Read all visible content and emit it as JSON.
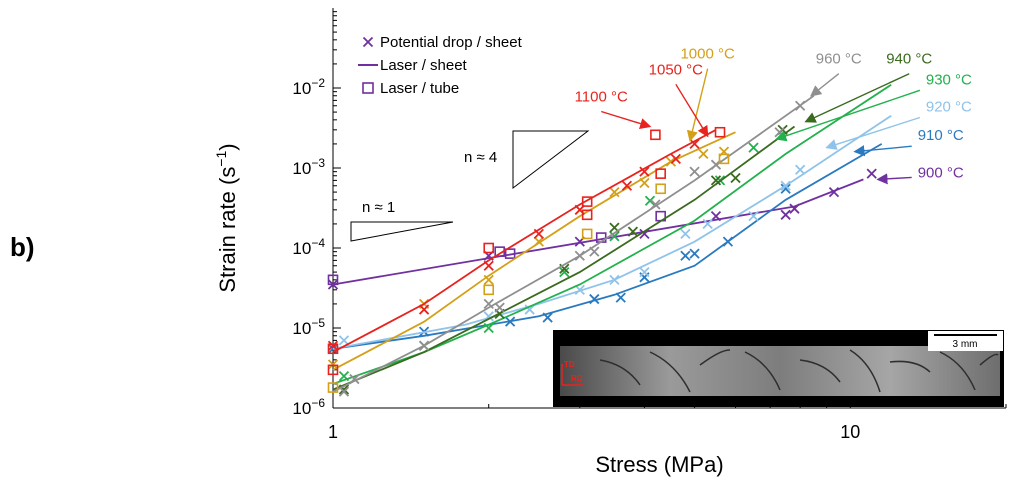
{
  "panel_label": "b)",
  "chart_data": {
    "type": "scatter",
    "xlabel": "Stress (MPa)",
    "ylabel_main": "Strain rate (s",
    "ylabel_sup": "−1",
    "ylabel_end": ")",
    "xscale": "log",
    "yscale": "log",
    "xlim": [
      1,
      20
    ],
    "ylim": [
      1e-06,
      0.1
    ],
    "x_ticks": [
      {
        "value": 1,
        "label": "1"
      },
      {
        "value": 10,
        "label": "10"
      }
    ],
    "y_ticks": [
      {
        "value": 1e-06,
        "base": "10",
        "exp": "−6"
      },
      {
        "value": 1e-05,
        "base": "10",
        "exp": "−5"
      },
      {
        "value": 0.0001,
        "base": "10",
        "exp": "−4"
      },
      {
        "value": 0.001,
        "base": "10",
        "exp": "−3"
      },
      {
        "value": 0.01,
        "base": "10",
        "exp": "−2"
      }
    ],
    "legend": [
      {
        "label": "Potential drop / sheet",
        "symbol": "x",
        "color": "#7030a0"
      },
      {
        "label": "Laser / sheet",
        "symbol": "line",
        "color": "#7030a0"
      },
      {
        "label": "Laser / tube",
        "symbol": "square",
        "color": "#7030a0"
      }
    ],
    "legend_position": "top-left",
    "slope_triangles": [
      {
        "label": "n ≈ 1",
        "slope": 1
      },
      {
        "label": "n ≈ 4",
        "slope": 4
      }
    ],
    "inset": {
      "scale_bar_label": "3 mm",
      "td_label": "TD",
      "rd_label": "RD"
    },
    "series": [
      {
        "name": "900 °C",
        "color": "#7030a0",
        "fit": [
          [
            1,
            3.5e-05
          ],
          [
            7.8,
            0.00033
          ],
          [
            10.6,
            0.00072
          ]
        ],
        "label_anchor": [
          13.5,
          0.00072
        ],
        "arrow_to": [
          11.3,
          0.00072
        ],
        "x_points": [
          [
            1,
            3.5e-05
          ],
          [
            2,
            8e-05
          ],
          [
            3,
            0.00012
          ],
          [
            4,
            0.00015
          ],
          [
            5.5,
            0.00025
          ],
          [
            7.5,
            0.00026
          ],
          [
            7.8,
            0.00031
          ],
          [
            9.3,
            0.0005
          ],
          [
            11,
            0.00085
          ]
        ],
        "sq_points": [
          [
            1,
            4e-05
          ],
          [
            2.1,
            9e-05
          ],
          [
            2.2,
            8.5e-05
          ],
          [
            3.3,
            0.000135
          ],
          [
            4.3,
            0.00025
          ]
        ]
      },
      {
        "name": "910 °C",
        "color": "#2a7ac0",
        "fit": [
          [
            1,
            5.5e-06
          ],
          [
            1.5,
            8e-06
          ],
          [
            2.5,
            1.4e-05
          ],
          [
            3.5,
            2.6e-05
          ],
          [
            5,
            6e-05
          ],
          [
            7.5,
            0.0004
          ],
          [
            11.5,
            0.002
          ]
        ],
        "label_anchor": [
          13.5,
          0.0021
        ],
        "arrow_to": [
          10.2,
          0.0016
        ],
        "x_points": [
          [
            1,
            5.5e-06
          ],
          [
            1.5,
            9e-06
          ],
          [
            2.2,
            1.2e-05
          ],
          [
            2.6,
            1.35e-05
          ],
          [
            3.2,
            2.3e-05
          ],
          [
            3.6,
            2.4e-05
          ],
          [
            4,
            4.3e-05
          ],
          [
            4.8,
            8e-05
          ],
          [
            5,
            8.5e-05
          ],
          [
            5.8,
            0.00012
          ],
          [
            7.5,
            0.00055
          ]
        ]
      },
      {
        "name": "920 °C",
        "color": "#8fc3ea",
        "fit": [
          [
            1,
            5.5e-06
          ],
          [
            1.8,
            1.1e-05
          ],
          [
            2.5,
            2e-05
          ],
          [
            3.5,
            4e-05
          ],
          [
            5,
            0.00012
          ],
          [
            7.5,
            0.0006
          ],
          [
            12,
            0.0045
          ]
        ],
        "label_anchor": [
          14,
          0.0048
        ],
        "arrow_to": [
          9,
          0.0018
        ],
        "x_points": [
          [
            1.05,
            7e-06
          ],
          [
            2,
            1.4e-05
          ],
          [
            2.4,
            1.7e-05
          ],
          [
            3,
            3e-05
          ],
          [
            3.5,
            4e-05
          ],
          [
            4,
            5e-05
          ],
          [
            4.8,
            0.00015
          ],
          [
            5.3,
            0.0002
          ],
          [
            6.5,
            0.00025
          ],
          [
            7.5,
            0.0006
          ],
          [
            8,
            0.00095
          ]
        ]
      },
      {
        "name": "930 °C",
        "color": "#22b14c",
        "fit": [
          [
            1,
            2e-06
          ],
          [
            1.5,
            5e-06
          ],
          [
            2,
            1.1e-05
          ],
          [
            3,
            3.5e-05
          ],
          [
            5,
            0.00022
          ],
          [
            7.5,
            0.0015
          ],
          [
            12,
            0.011
          ]
        ],
        "label_anchor": [
          14,
          0.0105
        ],
        "arrow_to": [
          7.2,
          0.0023
        ],
        "x_points": [
          [
            1.05,
            2.5e-06
          ],
          [
            1.5,
            6e-06
          ],
          [
            2,
            1e-05
          ],
          [
            2.8,
            5e-05
          ],
          [
            3.5,
            0.00014
          ],
          [
            4.1,
            0.00039
          ],
          [
            5.6,
            0.0007
          ],
          [
            6.5,
            0.0018
          ]
        ]
      },
      {
        "name": "940 °C",
        "color": "#3a6b1f",
        "fit": [
          [
            1,
            1.7e-06
          ],
          [
            1.5,
            5e-06
          ],
          [
            2,
            1.3e-05
          ],
          [
            3,
            5e-05
          ],
          [
            5,
            0.0004
          ],
          [
            7.8,
            0.0033
          ]
        ],
        "label_anchor": [
          13,
          0.019
        ],
        "arrow_to": [
          8.2,
          0.0038
        ],
        "x_points": [
          [
            1.05,
            1.7e-06
          ],
          [
            2.1,
            1.5e-05
          ],
          [
            2.8,
            5.5e-05
          ],
          [
            3.5,
            0.00018
          ],
          [
            3.8,
            0.00016
          ],
          [
            5.5,
            0.0007
          ],
          [
            6,
            0.00075
          ],
          [
            7.4,
            0.003
          ]
        ]
      },
      {
        "name": "960 °C",
        "color": "#8f8f8f",
        "fit": [
          [
            1,
            1.6e-06
          ],
          [
            1.5,
            6e-06
          ],
          [
            2,
            1.8e-05
          ],
          [
            3,
            8e-05
          ],
          [
            5,
            0.0007
          ],
          [
            8.5,
            0.008
          ]
        ],
        "label_anchor": [
          9.5,
          0.019
        ],
        "arrow_to": [
          8.4,
          0.008
        ],
        "x_points": [
          [
            1.05,
            1.6e-06
          ],
          [
            1.1,
            2.3e-06
          ],
          [
            1.5,
            6e-06
          ],
          [
            2,
            2e-05
          ],
          [
            2.1,
            1.8e-05
          ],
          [
            3,
            8e-05
          ],
          [
            3.2,
            9e-05
          ],
          [
            4.2,
            0.00035
          ],
          [
            5,
            0.0009
          ],
          [
            5.5,
            0.0011
          ],
          [
            7.3,
            0.0028
          ],
          [
            8,
            0.006
          ]
        ]
      },
      {
        "name": "1000 °C",
        "color": "#d4a017",
        "fit": [
          [
            1,
            3e-06
          ],
          [
            1.5,
            1.2e-05
          ],
          [
            2,
            4.5e-05
          ],
          [
            3,
            0.00025
          ],
          [
            4.5,
            0.0012
          ],
          [
            6,
            0.0028
          ]
        ],
        "label_anchor": [
          5.3,
          0.022
        ],
        "arrow_to": [
          4.9,
          0.0022
        ],
        "x_points": [
          [
            1,
            3.5e-06
          ],
          [
            1.5,
            2e-05
          ],
          [
            2,
            4e-05
          ],
          [
            2.5,
            0.00012
          ],
          [
            3,
            0.0003
          ],
          [
            3.5,
            0.0005
          ],
          [
            4,
            0.00065
          ],
          [
            4.5,
            0.0012
          ],
          [
            5.2,
            0.0015
          ],
          [
            5.7,
            0.0016
          ]
        ],
        "sq_points": [
          [
            1,
            1.8e-06
          ],
          [
            2,
            3e-05
          ],
          [
            3.1,
            0.00015
          ],
          [
            4.3,
            0.00055
          ],
          [
            5.7,
            0.0013
          ]
        ]
      },
      {
        "name": "1050 °C",
        "color": "#e8231f",
        "fit": [
          [
            1,
            5e-06
          ],
          [
            1.5,
            2e-05
          ],
          [
            2,
            7e-05
          ],
          [
            3,
            0.00035
          ],
          [
            4.5,
            0.0015
          ],
          [
            5.5,
            0.003
          ]
        ],
        "label_anchor": [
          4.6,
          0.014
        ],
        "arrow_to": [
          5.3,
          0.0025
        ],
        "x_points": [
          [
            1,
            6e-06
          ],
          [
            1.5,
            1.7e-05
          ],
          [
            2,
            6e-05
          ],
          [
            2.5,
            0.00015
          ],
          [
            3,
            0.0003
          ],
          [
            3.7,
            0.0006
          ],
          [
            4,
            0.0009
          ],
          [
            4.6,
            0.0013
          ],
          [
            5,
            0.002
          ]
        ],
        "sq_points": [
          [
            1,
            5.5e-06
          ],
          [
            1,
            3e-06
          ],
          [
            2,
            0.0001
          ],
          [
            3.1,
            0.00026
          ],
          [
            3.1,
            0.00038
          ],
          [
            4.3,
            0.00085
          ],
          [
            5.6,
            0.0028
          ]
        ]
      },
      {
        "name": "1100 °C",
        "color": "#e8231f",
        "fit": [],
        "label_anchor": [
          3.3,
          0.0064
        ],
        "arrow_to": [
          4.1,
          0.0033
        ],
        "x_points": [],
        "sq_points": [
          [
            4.2,
            0.0026
          ]
        ]
      }
    ]
  }
}
